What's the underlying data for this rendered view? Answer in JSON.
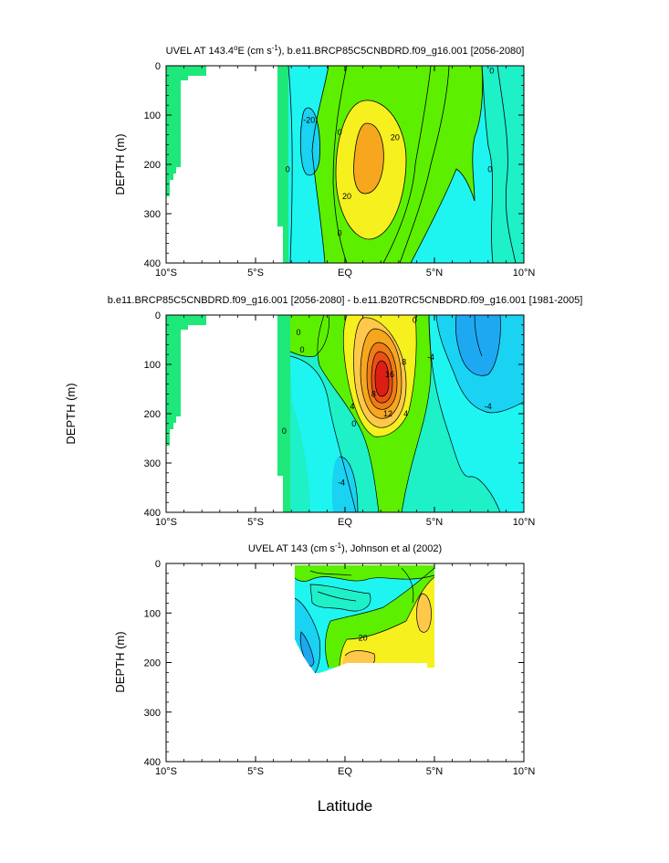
{
  "figure": {
    "xlabel": "Latitude",
    "ylabel_shared": "DEPTH (m)"
  },
  "colors": {
    "green": "#5cf000",
    "spring_green": "#1ee87a",
    "aquamarine": "#1ef0c8",
    "cyan": "#1ef5f0",
    "sky": "#1ad2f2",
    "blue": "#1ea8f2",
    "yellow": "#f5f01e",
    "light_orange": "#ffc84a",
    "orange": "#f7a71e",
    "dark_orange": "#ee7c16",
    "red_orange": "#ea5014",
    "red": "#dc1e14"
  },
  "chart_data": [
    {
      "type": "contour",
      "title_prefix": "UVEL AT 143.4",
      "title_suffix": "E (cm s",
      "title_rest": "), b.e11.BRCP85C5CNBDRD.f09_g16.001 [2056-2080]",
      "ylabel": "DEPTH (m)",
      "x_ticks": [
        "10°S",
        "5°S",
        "EQ",
        "5°N",
        "10°N"
      ],
      "x_tick_values": [
        -10,
        -5,
        0,
        5,
        10
      ],
      "y_ticks": [
        0,
        100,
        200,
        300,
        400
      ],
      "xlim": [
        -10,
        10
      ],
      "ylim": [
        400,
        0
      ],
      "contour_labels": [
        {
          "text": "-20",
          "lat": -2.0,
          "depth": 110
        },
        {
          "text": "0",
          "lat": -3.2,
          "depth": 210
        },
        {
          "text": "0",
          "lat": -0.3,
          "depth": 135
        },
        {
          "text": "20",
          "lat": 2.8,
          "depth": 145
        },
        {
          "text": "20",
          "lat": 0.1,
          "depth": 265
        },
        {
          "text": "0",
          "lat": -0.3,
          "depth": 340
        },
        {
          "text": "0",
          "lat": 8.2,
          "depth": 10
        },
        {
          "text": "0",
          "lat": 8.1,
          "depth": 210
        }
      ]
    },
    {
      "type": "contour",
      "title": "b.e11.BRCP85C5CNBDRD.f09_g16.001 [2056-2080] - b.e11.B20TRC5CNBDRD.f09_g16.001 [1981-2005]",
      "ylabel": "DEPTH (m)",
      "x_ticks": [
        "10°S",
        "5°S",
        "EQ",
        "5°N",
        "10°N"
      ],
      "x_tick_values": [
        -10,
        -5,
        0,
        5,
        10
      ],
      "y_ticks": [
        0,
        100,
        200,
        300,
        400
      ],
      "xlim": [
        -10,
        10
      ],
      "ylim": [
        400,
        0
      ],
      "contour_labels": [
        {
          "text": "0",
          "lat": -2.6,
          "depth": 35
        },
        {
          "text": "0",
          "lat": -2.4,
          "depth": 70
        },
        {
          "text": "4",
          "lat": 0.4,
          "depth": 185
        },
        {
          "text": "8",
          "lat": 1.6,
          "depth": 160
        },
        {
          "text": "16",
          "lat": 2.5,
          "depth": 120
        },
        {
          "text": "12",
          "lat": 2.4,
          "depth": 200
        },
        {
          "text": "8",
          "lat": 3.3,
          "depth": 95
        },
        {
          "text": "0",
          "lat": 3.9,
          "depth": 10
        },
        {
          "text": "4",
          "lat": 3.4,
          "depth": 200
        },
        {
          "text": "0",
          "lat": 0.5,
          "depth": 220
        },
        {
          "text": "-4",
          "lat": 4.8,
          "depth": 85
        },
        {
          "text": "-4",
          "lat": 8.0,
          "depth": 185
        },
        {
          "text": "0",
          "lat": -3.4,
          "depth": 235
        },
        {
          "text": "-4",
          "lat": -0.2,
          "depth": 340
        }
      ]
    },
    {
      "type": "contour",
      "title_prefix": "UVEL AT 143 (cm s",
      "title_rest": "), Johnson et al (2002)",
      "ylabel": "DEPTH (m)",
      "x_ticks": [
        "10°S",
        "5°S",
        "EQ",
        "5°N",
        "10°N"
      ],
      "x_tick_values": [
        -10,
        -5,
        0,
        5,
        10
      ],
      "y_ticks": [
        0,
        100,
        200,
        300,
        400
      ],
      "xlim": [
        -10,
        10
      ],
      "ylim": [
        400,
        0
      ],
      "contour_labels": [
        {
          "text": "20",
          "lat": 1.0,
          "depth": 150
        }
      ]
    }
  ]
}
